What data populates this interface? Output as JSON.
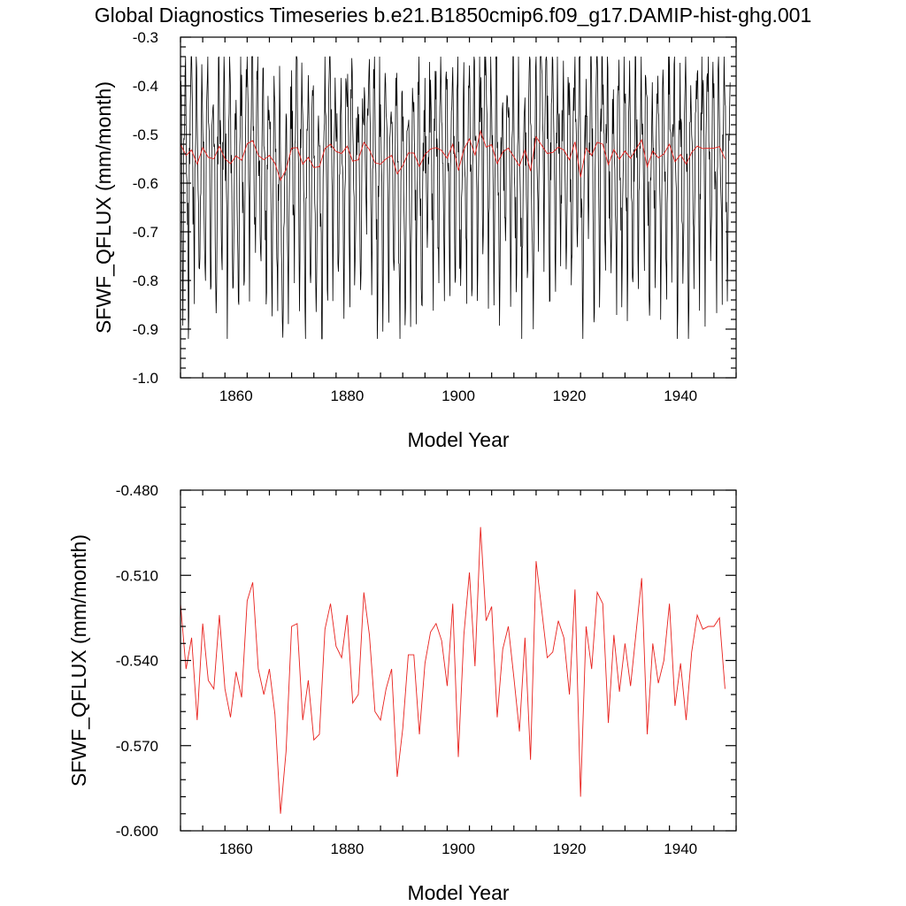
{
  "title": "Global Diagnostics Timeseries b.e21.B1850cmip6.f09_g17.DAMIP-hist-ghg.001",
  "colors": {
    "monthly": "#000000",
    "annual": "#e8211d"
  },
  "chart_data": [
    {
      "type": "line",
      "ylabel": "SFWF_QFLUX (mm/month)",
      "xlabel": "Model Year",
      "xlim": [
        1850,
        1950
      ],
      "ylim": [
        -1.0,
        -0.3
      ],
      "xticks": [
        1860,
        1880,
        1900,
        1920,
        1940
      ],
      "yticks": [
        -1.0,
        -0.9,
        -0.8,
        -0.7,
        -0.6,
        -0.5,
        -0.4,
        -0.3
      ],
      "ytick_labels": [
        "-1.0",
        "-0.9",
        "-0.8",
        "-0.7",
        "-0.6",
        "-0.5",
        "-0.4",
        "-0.3"
      ],
      "grid": false,
      "series": [
        {
          "kind": "monthly",
          "color": "#000000",
          "x_start": 1850,
          "x_step": 0.083333,
          "pattern": [
            -0.44,
            -0.49,
            -0.55,
            -0.62,
            -0.7,
            -0.76,
            -0.71,
            -0.6,
            -0.52,
            -0.46,
            -0.41,
            -0.42
          ],
          "approx_range": [
            -0.92,
            -0.34
          ]
        },
        {
          "kind": "annual",
          "color": "#e8211d",
          "x_start": 1850,
          "x_step": 1
        }
      ]
    },
    {
      "type": "line",
      "ylabel": "SFWF_QFLUX (mm/month)",
      "xlabel": "Model Year",
      "xlim": [
        1850,
        1950
      ],
      "ylim": [
        -0.6,
        -0.48
      ],
      "xticks": [
        1860,
        1880,
        1900,
        1920,
        1940
      ],
      "yticks": [
        -0.6,
        -0.57,
        -0.54,
        -0.51,
        -0.48
      ],
      "ytick_labels": [
        "-0.600",
        "-0.570",
        "-0.540",
        "-0.510",
        "-0.480"
      ],
      "grid": false,
      "series": [
        {
          "kind": "annual",
          "color": "#e8211d",
          "x_start": 1850,
          "x_step": 1,
          "values": [
            -0.52,
            -0.543,
            -0.532,
            -0.561,
            -0.527,
            -0.547,
            -0.55,
            -0.524,
            -0.55,
            -0.56,
            -0.544,
            -0.553,
            -0.519,
            -0.5125,
            -0.543,
            -0.552,
            -0.543,
            -0.559,
            -0.594,
            -0.572,
            -0.528,
            -0.527,
            -0.561,
            -0.547,
            -0.568,
            -0.566,
            -0.529,
            -0.52,
            -0.535,
            -0.539,
            -0.524,
            -0.555,
            -0.552,
            -0.516,
            -0.531,
            -0.558,
            -0.561,
            -0.55,
            -0.543,
            -0.581,
            -0.564,
            -0.538,
            -0.538,
            -0.566,
            -0.541,
            -0.53,
            -0.527,
            -0.533,
            -0.549,
            -0.52,
            -0.574,
            -0.531,
            -0.509,
            -0.542,
            -0.493,
            -0.526,
            -0.521,
            -0.56,
            -0.536,
            -0.528,
            -0.546,
            -0.565,
            -0.532,
            -0.575,
            -0.505,
            -0.522,
            -0.539,
            -0.537,
            -0.526,
            -0.532,
            -0.552,
            -0.515,
            -0.588,
            -0.528,
            -0.543,
            -0.516,
            -0.52,
            -0.562,
            -0.531,
            -0.551,
            -0.534,
            -0.549,
            -0.53,
            -0.511,
            -0.566,
            -0.534,
            -0.548,
            -0.54,
            -0.52,
            -0.556,
            -0.541,
            -0.561,
            -0.537,
            -0.524,
            -0.529,
            -0.528,
            -0.528,
            -0.525,
            -0.55
          ]
        }
      ]
    }
  ]
}
